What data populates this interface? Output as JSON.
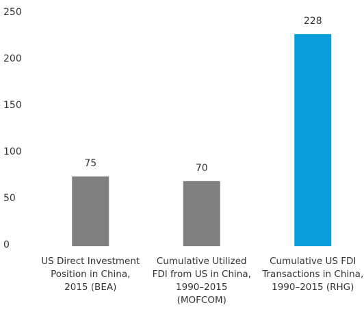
{
  "chart_data": {
    "type": "bar",
    "categories": [
      "US Direct Investment Position in China, 2015 (BEA)",
      "Cumulative Utilized FDI from US in China, 1990–2015 (MOFCOM)",
      "Cumulative US FDI Transactions in China, 1990–2015 (RHG)"
    ],
    "values": [
      75,
      70,
      228
    ],
    "colors": [
      "#808080",
      "#808080",
      "#0a9ddb"
    ],
    "ylim": [
      0,
      250
    ],
    "yticks": [
      0,
      50,
      100,
      150,
      200,
      250
    ],
    "grid": false
  }
}
